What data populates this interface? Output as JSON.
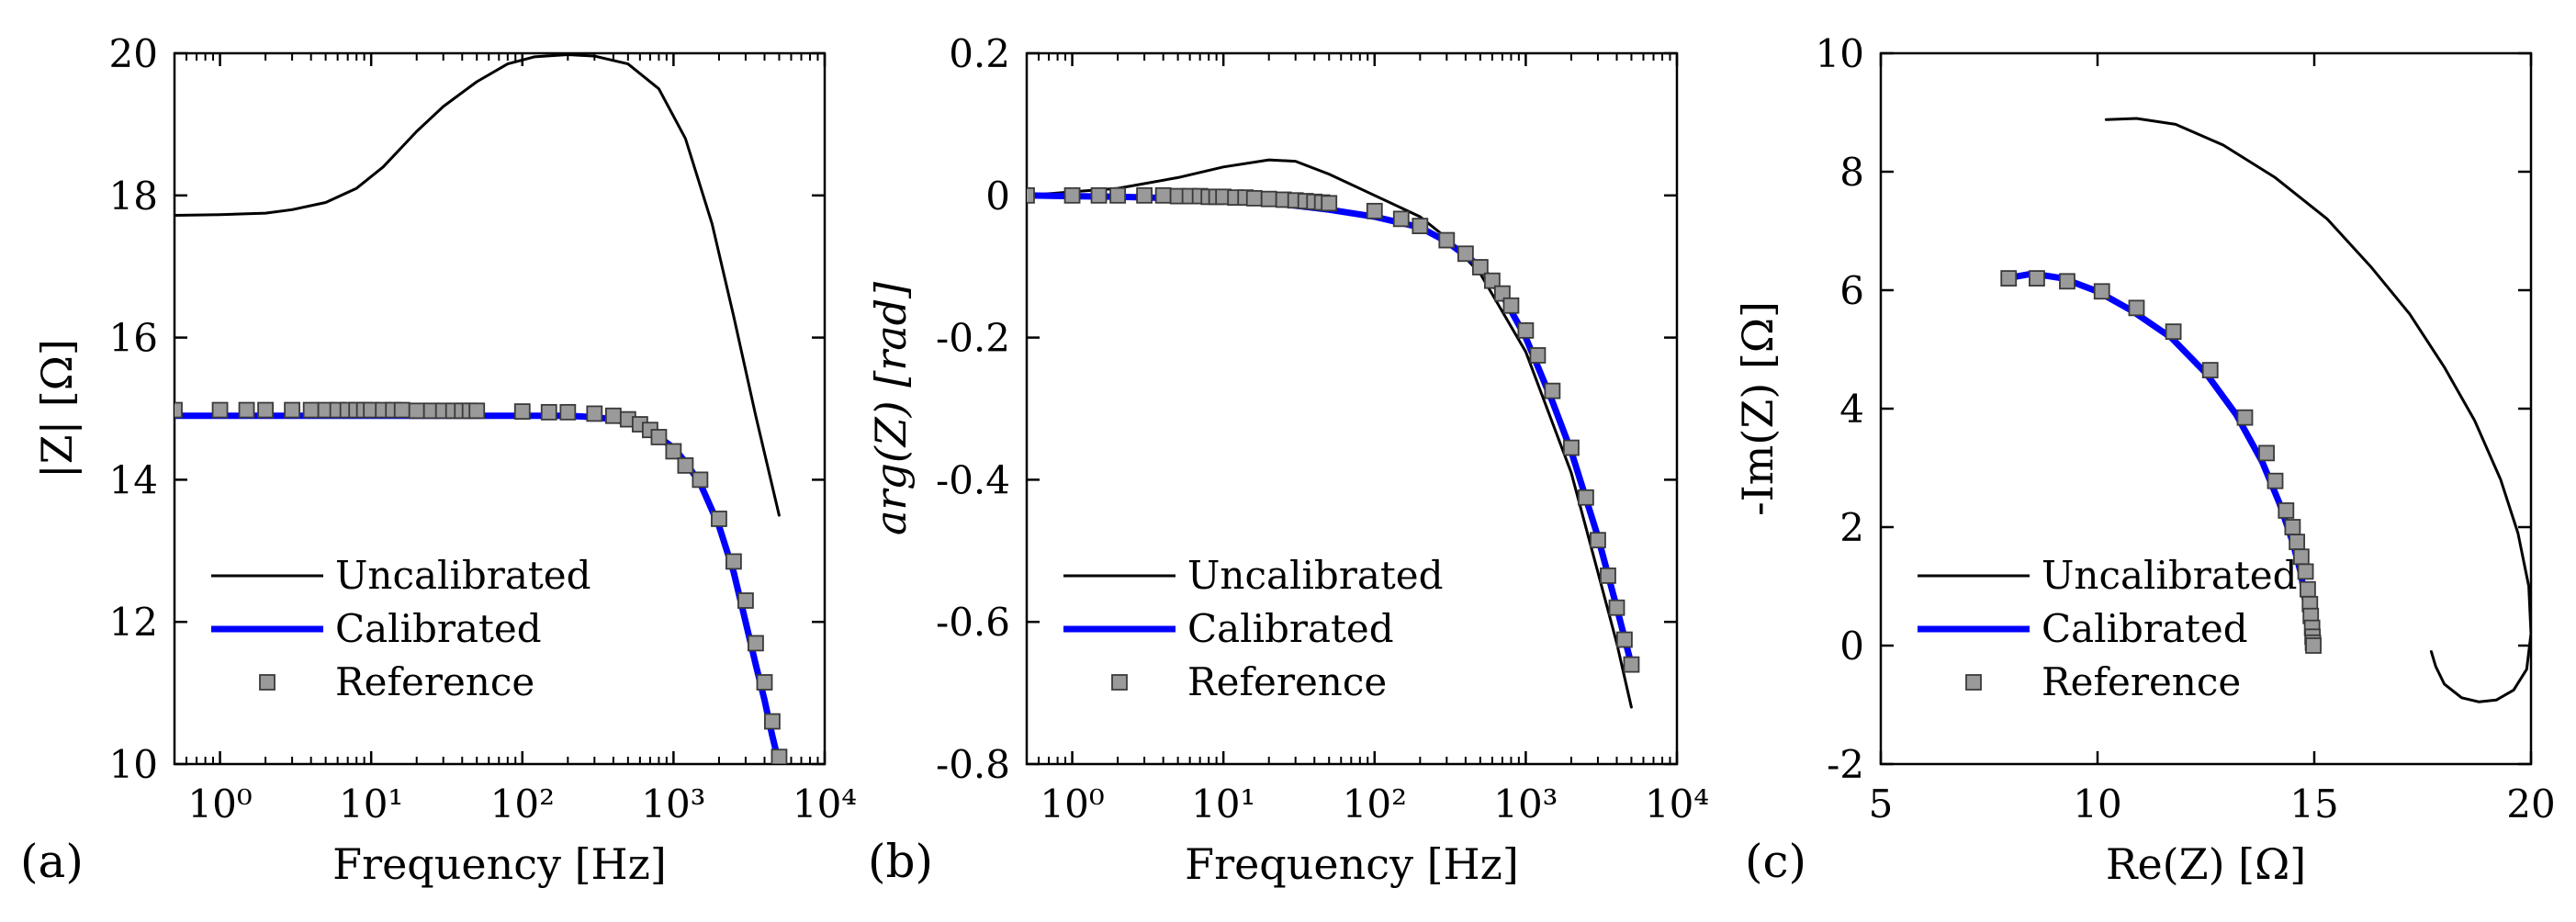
{
  "chart_data": [
    {
      "panel_label": "(a)",
      "type": "line",
      "xlabel": "Frequency [Hz]",
      "ylabel": "|Z| [Ω]",
      "xscale": "log",
      "xlim": [
        0.5,
        10000
      ],
      "ylim": [
        10,
        20
      ],
      "xticks": [
        1,
        10,
        100,
        1000,
        10000
      ],
      "xtick_labels": [
        "10⁰",
        "10¹",
        "10²",
        "10³",
        "10⁴"
      ],
      "yticks": [
        10,
        12,
        14,
        16,
        18,
        20
      ],
      "ytick_labels": [
        "10",
        "12",
        "14",
        "16",
        "18",
        "20"
      ],
      "legend": {
        "placement": "bottom-left",
        "entries": [
          "Uncalibrated",
          "Calibrated",
          "Reference"
        ]
      },
      "series": [
        {
          "name": "Uncalibrated",
          "style": "black-line",
          "x": [
            0.5,
            1,
            2,
            3,
            5,
            8,
            12,
            20,
            30,
            50,
            80,
            120,
            200,
            300,
            500,
            800,
            1200,
            1800,
            2500,
            3500,
            5000
          ],
          "y": [
            17.72,
            17.73,
            17.75,
            17.8,
            17.9,
            18.1,
            18.4,
            18.9,
            19.25,
            19.6,
            19.85,
            19.95,
            19.98,
            19.96,
            19.85,
            19.5,
            18.8,
            17.6,
            16.3,
            14.9,
            13.5
          ]
        },
        {
          "name": "Calibrated",
          "style": "blue-line",
          "x": [
            0.5,
            1,
            3,
            10,
            30,
            100,
            200,
            300,
            400,
            500,
            600,
            700,
            800,
            1000,
            1200,
            1500,
            2000,
            2500,
            3000,
            3500,
            4000,
            4500,
            5000
          ],
          "y": [
            14.9,
            14.9,
            14.9,
            14.9,
            14.9,
            14.9,
            14.9,
            14.88,
            14.85,
            14.8,
            14.75,
            14.68,
            14.6,
            14.45,
            14.25,
            13.95,
            13.35,
            12.7,
            12.0,
            11.4,
            10.9,
            10.4,
            10.0
          ]
        },
        {
          "name": "Reference",
          "style": "gray-squares",
          "x": [
            0.5,
            1,
            1.5,
            2,
            3,
            4,
            5,
            6,
            7,
            8,
            9,
            10,
            12,
            14,
            16,
            20,
            25,
            30,
            35,
            40,
            45,
            50,
            100,
            150,
            200,
            300,
            400,
            500,
            600,
            700,
            800,
            1000,
            1200,
            1500,
            2000,
            2500,
            3000,
            3500,
            4000,
            4500,
            5000
          ],
          "y": [
            14.98,
            14.98,
            14.98,
            14.98,
            14.98,
            14.98,
            14.98,
            14.98,
            14.98,
            14.98,
            14.98,
            14.98,
            14.98,
            14.98,
            14.98,
            14.97,
            14.97,
            14.97,
            14.97,
            14.97,
            14.97,
            14.97,
            14.96,
            14.95,
            14.95,
            14.93,
            14.9,
            14.85,
            14.78,
            14.7,
            14.6,
            14.4,
            14.2,
            14.0,
            13.45,
            12.85,
            12.3,
            11.7,
            11.15,
            10.6,
            10.1
          ]
        }
      ]
    },
    {
      "panel_label": "(b)",
      "type": "line",
      "xlabel": "Frequency [Hz]",
      "ylabel": "arg(Z) [rad]",
      "xscale": "log",
      "xlim": [
        0.5,
        10000
      ],
      "ylim": [
        -0.8,
        0.2
      ],
      "xticks": [
        1,
        10,
        100,
        1000,
        10000
      ],
      "xtick_labels": [
        "10⁰",
        "10¹",
        "10²",
        "10³",
        "10⁴"
      ],
      "yticks": [
        -0.8,
        -0.6,
        -0.4,
        -0.2,
        0,
        0.2
      ],
      "ytick_labels": [
        "-0.8",
        "-0.6",
        "-0.4",
        "-0.2",
        "0",
        "0.2"
      ],
      "legend": {
        "placement": "bottom-left",
        "entries": [
          "Uncalibrated",
          "Calibrated",
          "Reference"
        ]
      },
      "series": [
        {
          "name": "Uncalibrated",
          "style": "black-line",
          "x": [
            0.5,
            1,
            2,
            5,
            10,
            20,
            30,
            50,
            100,
            200,
            300,
            500,
            1000,
            2000,
            3000,
            4000,
            5000
          ],
          "y": [
            0.0,
            0.005,
            0.01,
            0.025,
            0.04,
            0.05,
            0.048,
            0.03,
            0.0,
            -0.03,
            -0.06,
            -0.11,
            -0.22,
            -0.39,
            -0.53,
            -0.63,
            -0.72
          ]
        },
        {
          "name": "Calibrated",
          "style": "blue-line",
          "x": [
            0.5,
            1,
            2,
            5,
            10,
            20,
            50,
            100,
            200,
            300,
            500,
            700,
            1000,
            1500,
            2000,
            3000,
            4000,
            5000
          ],
          "y": [
            0.0,
            -0.001,
            -0.002,
            -0.004,
            -0.006,
            -0.01,
            -0.02,
            -0.03,
            -0.045,
            -0.065,
            -0.1,
            -0.14,
            -0.2,
            -0.29,
            -0.36,
            -0.48,
            -0.58,
            -0.66
          ]
        },
        {
          "name": "Reference",
          "style": "gray-squares",
          "x": [
            0.5,
            1,
            1.5,
            2,
            3,
            4,
            5,
            6,
            7,
            8,
            9,
            10,
            12,
            14,
            16,
            20,
            25,
            30,
            35,
            40,
            45,
            50,
            100,
            150,
            200,
            300,
            400,
            500,
            600,
            700,
            800,
            1000,
            1200,
            1500,
            2000,
            2500,
            3000,
            3500,
            4000,
            4500,
            5000
          ],
          "y": [
            0.0,
            0.0,
            0.0,
            0.0,
            0.0,
            0.0,
            -0.001,
            -0.001,
            -0.001,
            -0.002,
            -0.002,
            -0.002,
            -0.003,
            -0.003,
            -0.004,
            -0.005,
            -0.006,
            -0.007,
            -0.008,
            -0.009,
            -0.01,
            -0.011,
            -0.022,
            -0.033,
            -0.043,
            -0.063,
            -0.082,
            -0.101,
            -0.12,
            -0.138,
            -0.155,
            -0.19,
            -0.225,
            -0.275,
            -0.355,
            -0.425,
            -0.485,
            -0.535,
            -0.58,
            -0.625,
            -0.66
          ]
        }
      ]
    },
    {
      "panel_label": "(c)",
      "type": "line",
      "xlabel": "Re(Z) [Ω]",
      "ylabel": "-Im(Z) [Ω]",
      "xscale": "linear",
      "xlim": [
        5,
        20
      ],
      "ylim": [
        -2,
        10
      ],
      "xticks": [
        5,
        10,
        15,
        20
      ],
      "xtick_labels": [
        "5",
        "10",
        "15",
        "20"
      ],
      "yticks": [
        -2,
        0,
        2,
        4,
        6,
        8,
        10
      ],
      "ytick_labels": [
        "-2",
        "0",
        "2",
        "4",
        "6",
        "8",
        "10"
      ],
      "legend": {
        "placement": "bottom-left",
        "entries": [
          "Uncalibrated",
          "Calibrated",
          "Reference"
        ]
      },
      "series": [
        {
          "name": "Uncalibrated",
          "style": "black-line",
          "x": [
            10.2,
            10.9,
            11.8,
            12.9,
            14.1,
            15.3,
            16.3,
            17.2,
            18.0,
            18.7,
            19.3,
            19.7,
            19.95,
            20.0,
            19.9,
            19.6,
            19.2,
            18.8,
            18.4,
            18.0,
            17.8,
            17.7
          ],
          "y": [
            8.88,
            8.9,
            8.8,
            8.45,
            7.9,
            7.2,
            6.4,
            5.6,
            4.7,
            3.8,
            2.8,
            1.9,
            1.0,
            0.2,
            -0.4,
            -0.75,
            -0.92,
            -0.95,
            -0.88,
            -0.65,
            -0.35,
            -0.1
          ]
        },
        {
          "name": "Calibrated",
          "style": "blue-line",
          "x": [
            7.9,
            8.5,
            9.2,
            10.0,
            10.8,
            11.7,
            12.5,
            13.2,
            13.8,
            14.2,
            14.5,
            14.7,
            14.8,
            14.9,
            14.95
          ],
          "y": [
            6.2,
            6.28,
            6.2,
            5.98,
            5.65,
            5.2,
            4.6,
            3.9,
            3.1,
            2.4,
            1.75,
            1.2,
            0.7,
            0.3,
            0.0
          ]
        },
        {
          "name": "Reference",
          "style": "gray-squares",
          "x": [
            7.95,
            8.6,
            9.3,
            10.1,
            10.9,
            11.75,
            12.6,
            13.4,
            13.9,
            14.1,
            14.35,
            14.5,
            14.6,
            14.7,
            14.8,
            14.85,
            14.9,
            14.92,
            14.95,
            14.96,
            14.97,
            14.98
          ],
          "y": [
            6.2,
            6.2,
            6.15,
            5.98,
            5.7,
            5.3,
            4.65,
            3.85,
            3.25,
            2.78,
            2.28,
            2.0,
            1.75,
            1.5,
            1.25,
            0.95,
            0.7,
            0.5,
            0.3,
            0.15,
            0.05,
            0.0
          ]
        }
      ]
    }
  ]
}
